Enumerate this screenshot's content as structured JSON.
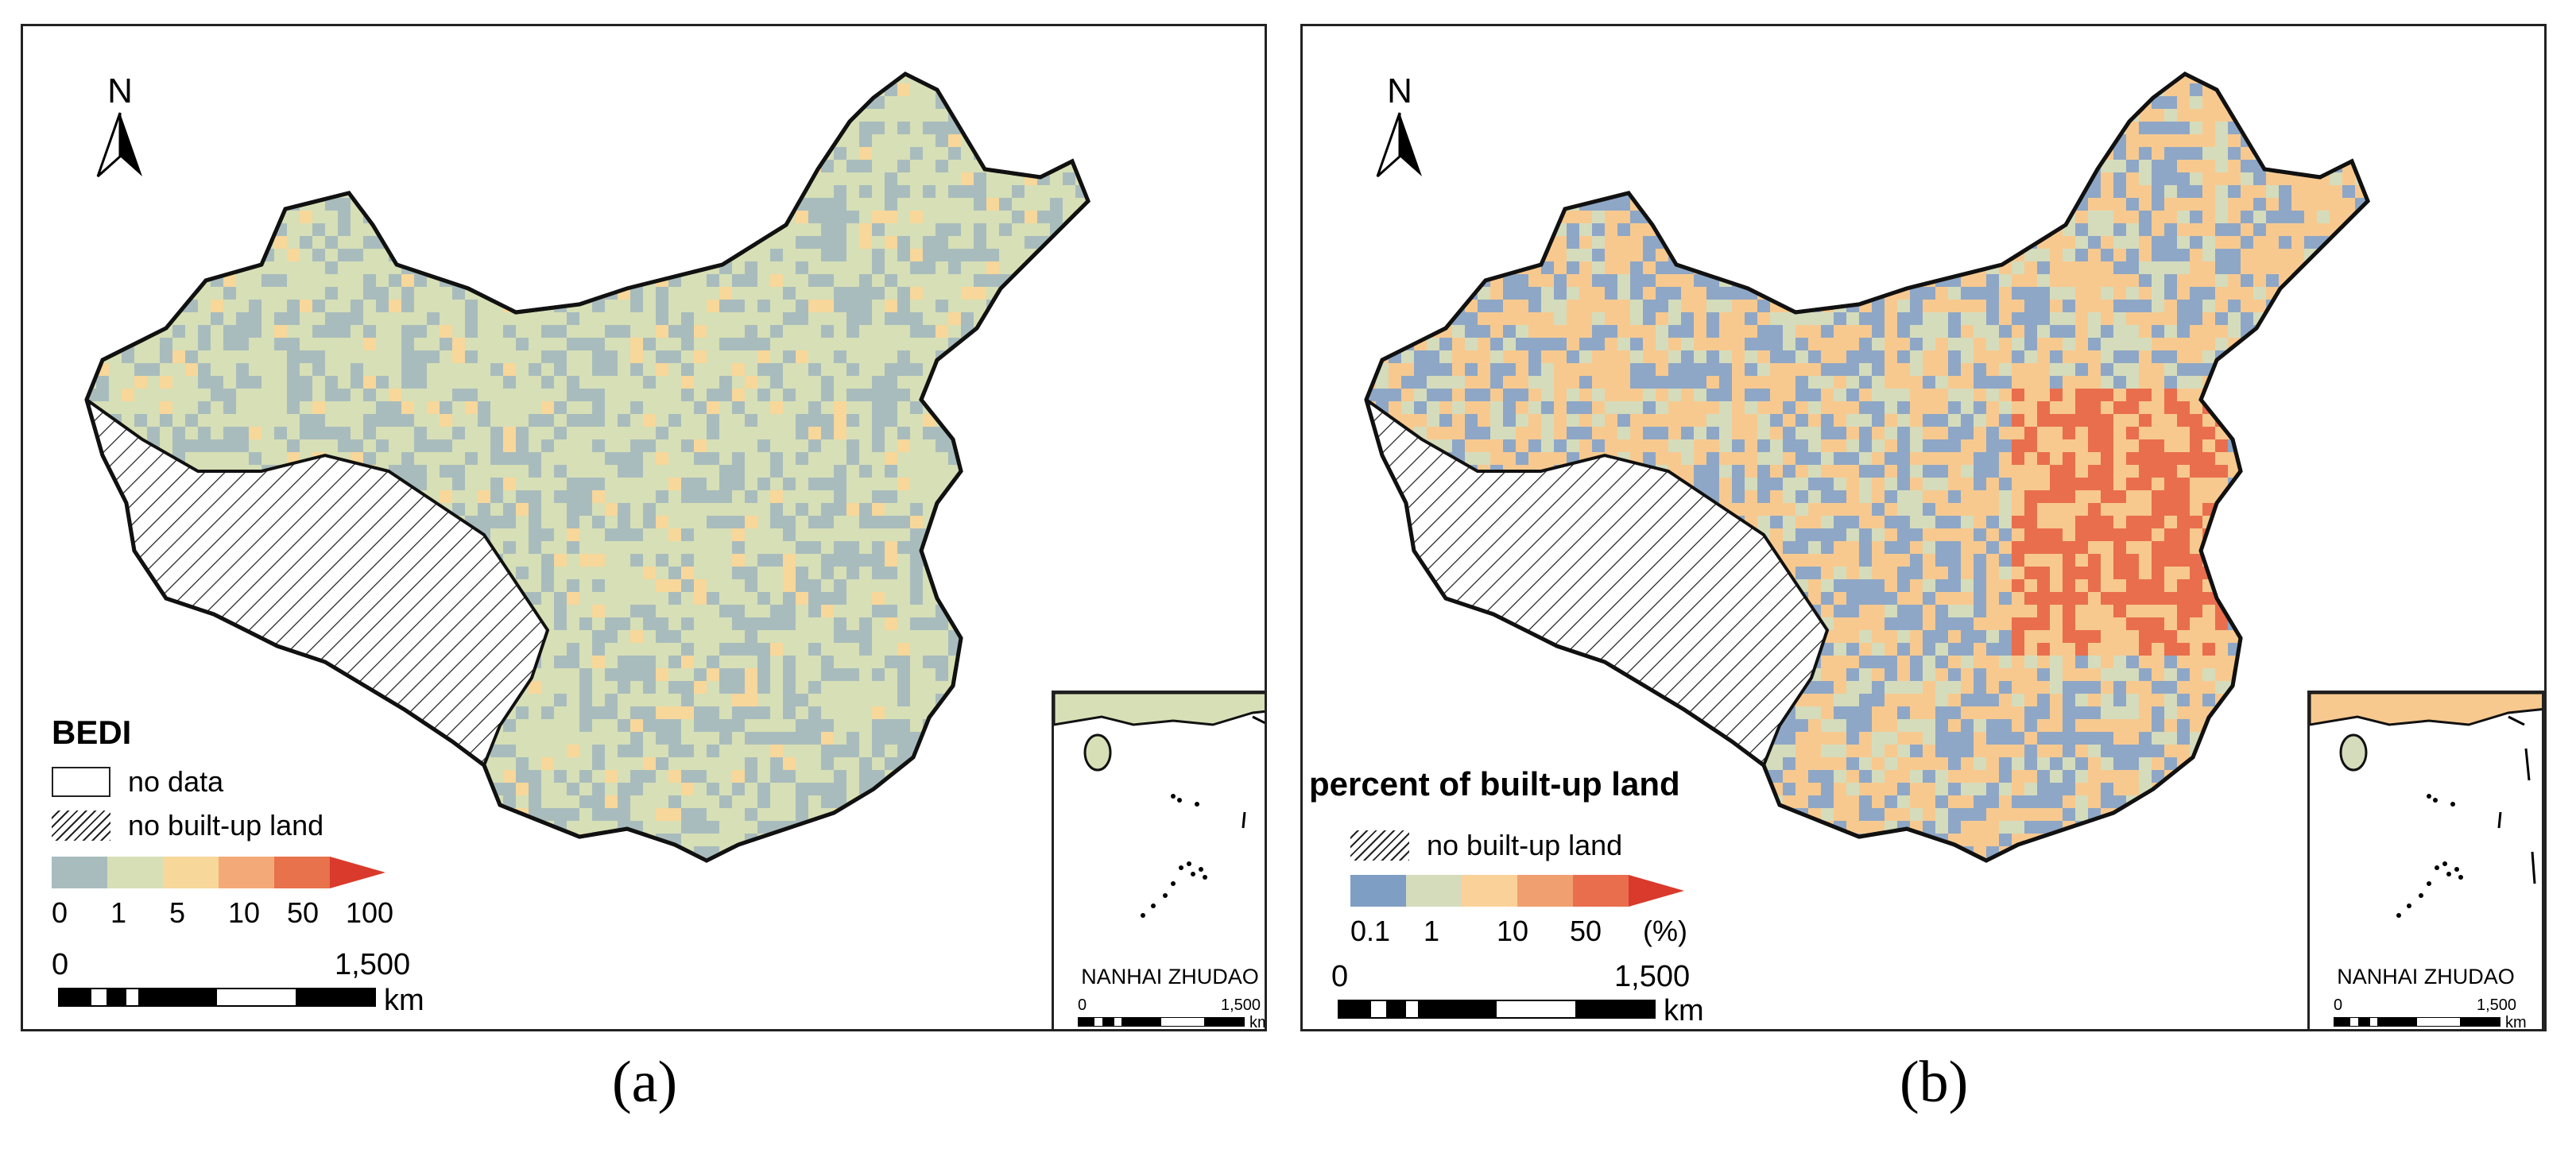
{
  "panels": [
    {
      "id": "a",
      "caption": "(a)",
      "north": "N",
      "legend_title": "BEDI",
      "nodata_label": "no data",
      "hatch_label": "no built-up land",
      "ramp_colors": [
        "#a9bcbd",
        "#d7dfb6",
        "#f7d79a",
        "#f4aa78",
        "#e7724c",
        "#d93a2c"
      ],
      "ramp_ticks": [
        "0",
        "1",
        "5",
        "10",
        "50",
        "100"
      ],
      "scale_start": "0",
      "scale_end": "1,500",
      "scale_unit": "km",
      "inset_title": "NANHAI ZHUDAO",
      "inset_scale_start": "0",
      "inset_scale_end": "1,500",
      "inset_scale_unit": "km",
      "palette": {
        "base": "#a9bcbd",
        "mid": "#d7dfb6",
        "warm": "#f7d79a",
        "hot": "#e7724c"
      }
    },
    {
      "id": "b",
      "caption": "(b)",
      "north": "N",
      "legend_title": "percent of  built-up land",
      "hatch_label": "no built-up land",
      "ramp_colors": [
        "#7f9ec3",
        "#d5dcbc",
        "#fbd19a",
        "#f0a070",
        "#e96e4d",
        "#d93a2c"
      ],
      "ramp_ticks": [
        "0.1",
        "1",
        "10",
        "50",
        "(%)"
      ],
      "scale_start": "0",
      "scale_end": "1,500",
      "scale_unit": "km",
      "inset_title": "NANHAI ZHUDAO",
      "inset_scale_start": "0",
      "inset_scale_end": "1,500",
      "inset_scale_unit": "km",
      "palette": {
        "base": "#8ea7c6",
        "mid": "#d5dcbc",
        "warm": "#f7c98f",
        "hot": "#e96e4d"
      }
    }
  ]
}
